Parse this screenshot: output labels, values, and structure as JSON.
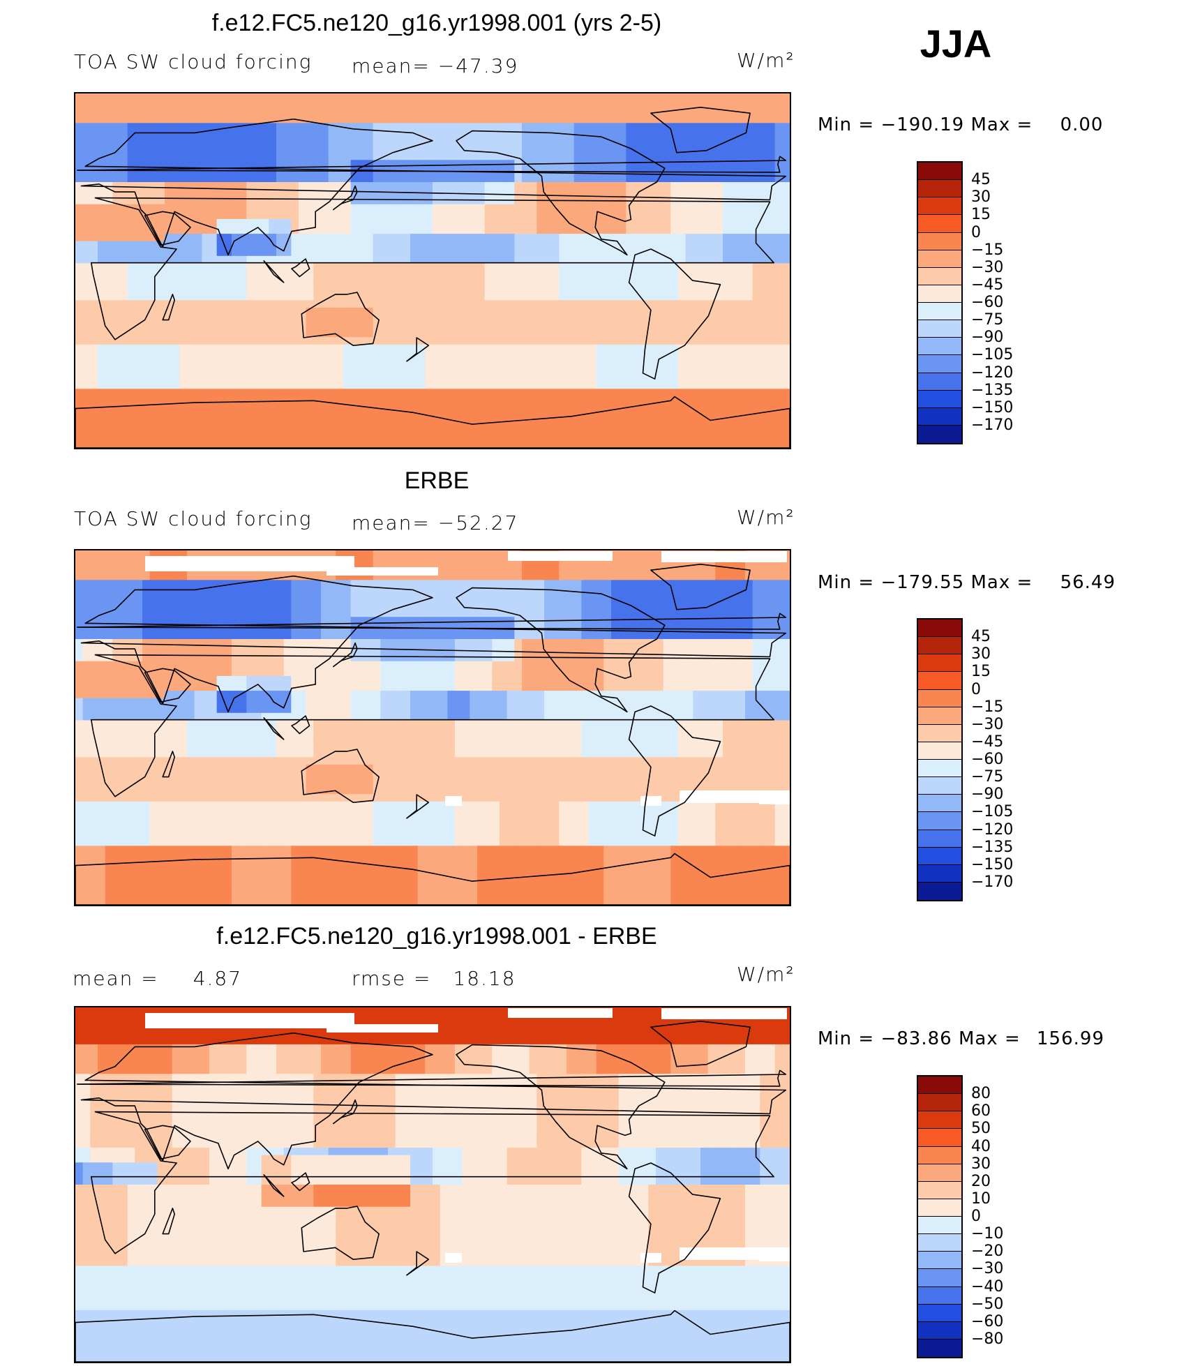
{
  "season": "JJA",
  "units": "W/m²",
  "palette_main": [
    "#8a0a0a",
    "#b5250b",
    "#db3a0e",
    "#f75a24",
    "#f98550",
    "#fba87c",
    "#fdcbaa",
    "#fde9da",
    "#dbeefc",
    "#bcd7fb",
    "#93b8f7",
    "#6a95f2",
    "#4672ec",
    "#234fe1",
    "#1232c1",
    "#0c1b93"
  ],
  "palette_diff": [
    "#8a0a0a",
    "#b5250b",
    "#db3a0e",
    "#f75a24",
    "#f98550",
    "#fba87c",
    "#fdcbaa",
    "#fde9da",
    "#dbeefc",
    "#bcd7fb",
    "#93b8f7",
    "#6a95f2",
    "#4672ec",
    "#234fe1",
    "#1232c1",
    "#0c1b93"
  ],
  "chart_data": [
    {
      "type": "heatmap",
      "title": "f.e12.FC5.ne120_g16.yr1998.001 (yrs 2-5)",
      "variable": "TOA SW cloud forcing",
      "mean_label": "mean=",
      "mean": "−47.39",
      "units": "W/m²",
      "min_label": "Min  =",
      "min": "−190.19",
      "max_label": "Max  =",
      "max": "0.00",
      "levels": [
        "45",
        "30",
        "15",
        "0",
        "−15",
        "−30",
        "−45",
        "−60",
        "−75",
        "−90",
        "−105",
        "−120",
        "−135",
        "−150",
        "−170"
      ],
      "zonal_structure": {
        "arctic": -20,
        "n_midlat_storm": -110,
        "subtropics": -45,
        "itcz": -85,
        "s_subtropics": -40,
        "s_midlat": -55,
        "antarctic": -10
      }
    },
    {
      "type": "heatmap",
      "title": "ERBE",
      "variable": "TOA SW cloud forcing",
      "mean_label": "mean=",
      "mean": "−52.27",
      "units": "W/m²",
      "min_label": "Min  =",
      "min": "−179.55",
      "max_label": "Max  =",
      "max": "56.49",
      "levels": [
        "45",
        "30",
        "15",
        "0",
        "−15",
        "−30",
        "−45",
        "−60",
        "−75",
        "−90",
        "−105",
        "−120",
        "−135",
        "−150",
        "−170"
      ],
      "zonal_structure": {
        "arctic": -25,
        "n_midlat_storm": -120,
        "subtropics": -45,
        "itcz": -80,
        "s_subtropics": -35,
        "s_midlat": -50,
        "antarctic": -5
      }
    },
    {
      "type": "heatmap",
      "title": "f.e12.FC5.ne120_g16.yr1998.001 - ERBE",
      "mean_label": "mean  =",
      "mean": "4.87",
      "rmse_label": "rmse  =",
      "rmse": "18.18",
      "units": "W/m²",
      "min_label": "Min  =",
      "min": "−83.86",
      "max_label": "Max  =",
      "max": "156.99",
      "levels": [
        "80",
        "60",
        "50",
        "40",
        "30",
        "20",
        "10",
        "0",
        "−10",
        "−20",
        "−30",
        "−40",
        "−50",
        "−60",
        "−80"
      ],
      "zonal_structure": {
        "arctic": 55,
        "n_midlat_storm": 15,
        "subtropics": 5,
        "itcz": -5,
        "s_subtropics": 10,
        "s_midlat": -5,
        "antarctic": -12
      }
    }
  ]
}
